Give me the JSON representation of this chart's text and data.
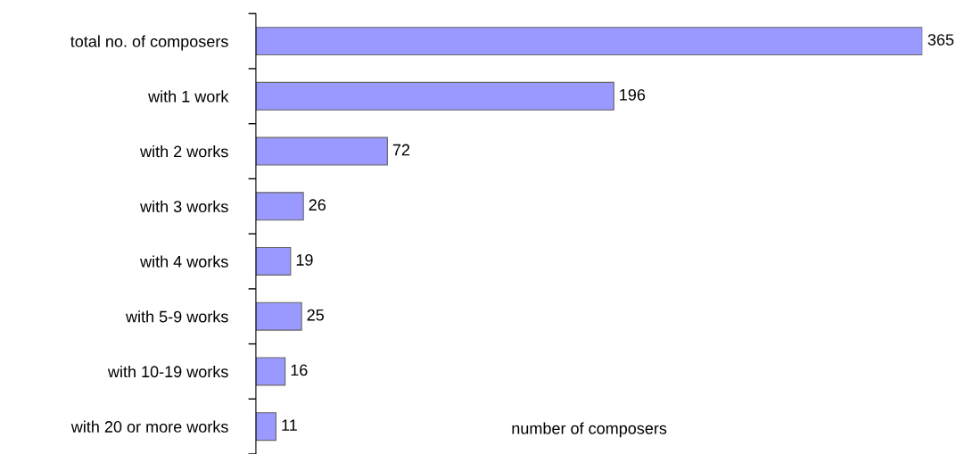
{
  "chart_data": {
    "type": "bar",
    "orientation": "horizontal",
    "xlabel": "number of composers",
    "categories": [
      "total no. of composers",
      "with 1 work",
      "with 2 works",
      "with 3 works",
      "with 4 works",
      "with 5-9 works",
      "with 10-19 works",
      "with 20 or more works"
    ],
    "values": [
      365,
      196,
      72,
      26,
      19,
      25,
      16,
      11
    ],
    "color": "#9999ff",
    "data_labels": true,
    "grid": false,
    "legend": false
  }
}
